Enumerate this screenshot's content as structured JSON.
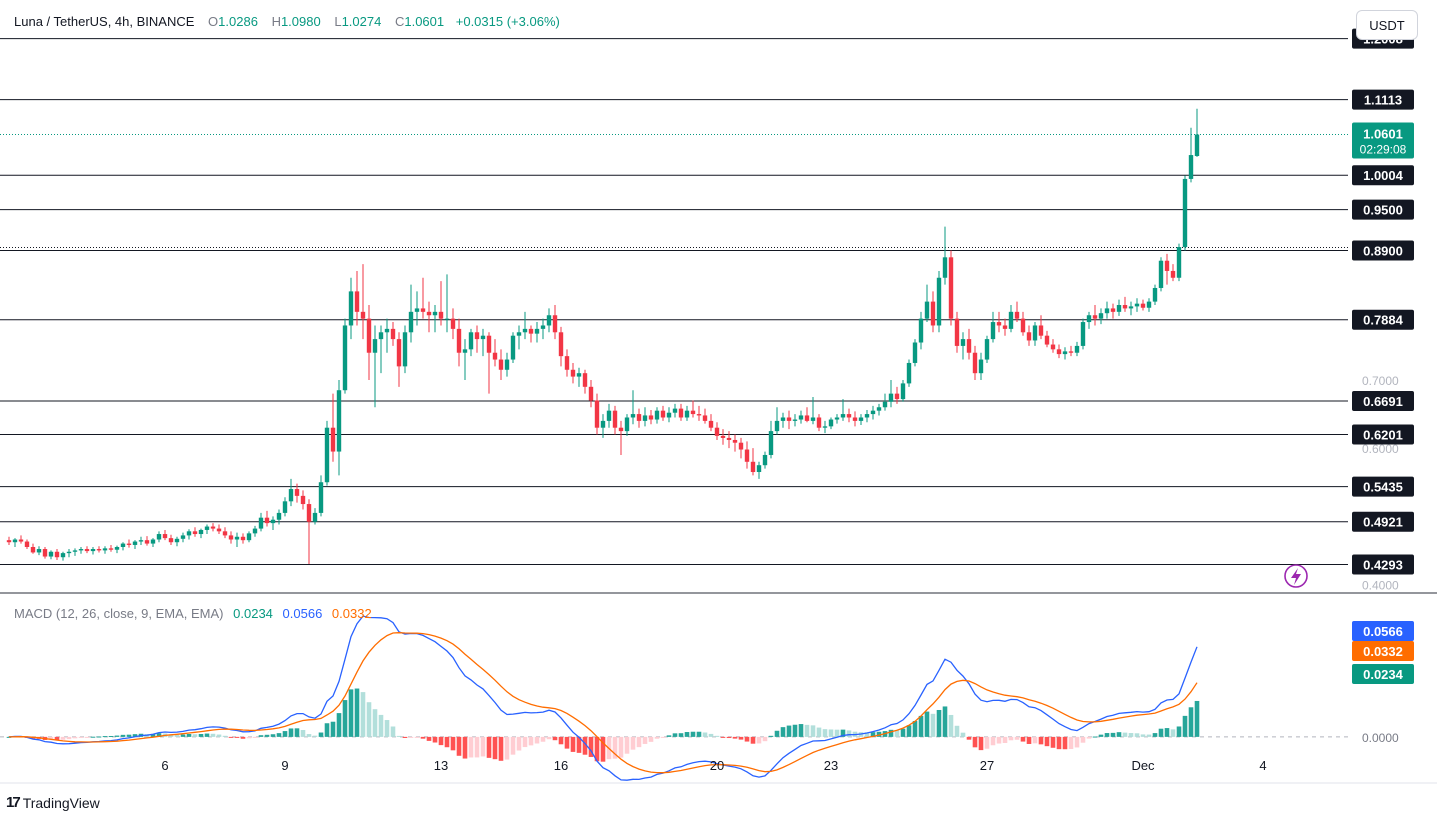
{
  "header": {
    "symbol": "Luna / TetherUS, 4h, BINANCE",
    "open_label": "O",
    "open": "1.0286",
    "high_label": "H",
    "high": "1.0980",
    "low_label": "L",
    "low": "1.0274",
    "close_label": "C",
    "close": "1.0601",
    "change": "+0.0315 (+3.06%)"
  },
  "currency_button": "USDT",
  "macd_header": {
    "label": "MACD (12, 26, close, 9, EMA, EMA)",
    "histogram": "0.0234",
    "macd": "0.0566",
    "signal": "0.0332"
  },
  "brand": "TradingView",
  "colors": {
    "up": "#089981",
    "down": "#f23645",
    "macd": "#2962ff",
    "signal": "#ff6d00",
    "hist_up": "#26a69a",
    "hist_up_light": "#b2dfdb",
    "hist_down": "#ff5252",
    "hist_down_light": "#ffcdd2"
  },
  "chart_data": {
    "type": "candlestick",
    "price_axis": {
      "range": [
        0.3875,
        1.2575
      ],
      "ticks": [
        "0.7000",
        "0.6000",
        "0.4000"
      ]
    },
    "levels": [
      "1.2008",
      "1.1113",
      "1.0004",
      "0.9500",
      "0.8900",
      "0.7884",
      "0.6691",
      "0.6201",
      "0.5435",
      "0.4921",
      "0.4293"
    ],
    "current_price": "1.0601",
    "countdown": "02:29:08",
    "x_axis_labels": [
      {
        "label": "6",
        "bar": 26
      },
      {
        "label": "9",
        "bar": 46
      },
      {
        "label": "13",
        "bar": 72
      },
      {
        "label": "16",
        "bar": 92
      },
      {
        "label": "20",
        "bar": 118
      },
      {
        "label": "23",
        "bar": 137
      },
      {
        "label": "27",
        "bar": 163
      },
      {
        "label": "Dec",
        "bar": 189
      },
      {
        "label": "4",
        "bar": 209
      }
    ],
    "candles": [
      [
        0.465,
        0.47,
        0.458,
        0.462
      ],
      [
        0.462,
        0.468,
        0.455,
        0.466
      ],
      [
        0.466,
        0.472,
        0.46,
        0.463
      ],
      [
        0.463,
        0.466,
        0.452,
        0.455
      ],
      [
        0.455,
        0.46,
        0.445,
        0.447
      ],
      [
        0.447,
        0.456,
        0.443,
        0.452
      ],
      [
        0.452,
        0.455,
        0.438,
        0.441
      ],
      [
        0.441,
        0.45,
        0.437,
        0.448
      ],
      [
        0.448,
        0.452,
        0.436,
        0.44
      ],
      [
        0.44,
        0.448,
        0.435,
        0.446
      ],
      [
        0.446,
        0.452,
        0.44,
        0.448
      ],
      [
        0.448,
        0.453,
        0.442,
        0.45
      ],
      [
        0.45,
        0.455,
        0.445,
        0.452
      ],
      [
        0.452,
        0.456,
        0.446,
        0.449
      ],
      [
        0.449,
        0.455,
        0.444,
        0.452
      ],
      [
        0.452,
        0.456,
        0.447,
        0.45
      ],
      [
        0.45,
        0.456,
        0.445,
        0.453
      ],
      [
        0.453,
        0.458,
        0.448,
        0.451
      ],
      [
        0.451,
        0.457,
        0.446,
        0.455
      ],
      [
        0.455,
        0.462,
        0.45,
        0.46
      ],
      [
        0.46,
        0.466,
        0.454,
        0.458
      ],
      [
        0.458,
        0.465,
        0.452,
        0.463
      ],
      [
        0.463,
        0.47,
        0.458,
        0.465
      ],
      [
        0.465,
        0.471,
        0.457,
        0.46
      ],
      [
        0.46,
        0.468,
        0.455,
        0.466
      ],
      [
        0.466,
        0.478,
        0.462,
        0.474
      ],
      [
        0.474,
        0.48,
        0.465,
        0.468
      ],
      [
        0.468,
        0.473,
        0.458,
        0.462
      ],
      [
        0.462,
        0.47,
        0.456,
        0.467
      ],
      [
        0.467,
        0.476,
        0.462,
        0.472
      ],
      [
        0.472,
        0.481,
        0.466,
        0.478
      ],
      [
        0.478,
        0.484,
        0.47,
        0.474
      ],
      [
        0.474,
        0.482,
        0.468,
        0.48
      ],
      [
        0.48,
        0.488,
        0.474,
        0.485
      ],
      [
        0.485,
        0.49,
        0.478,
        0.482
      ],
      [
        0.482,
        0.488,
        0.474,
        0.478
      ],
      [
        0.478,
        0.484,
        0.468,
        0.472
      ],
      [
        0.472,
        0.478,
        0.46,
        0.466
      ],
      [
        0.466,
        0.476,
        0.455,
        0.47
      ],
      [
        0.47,
        0.475,
        0.46,
        0.465
      ],
      [
        0.465,
        0.478,
        0.462,
        0.475
      ],
      [
        0.475,
        0.486,
        0.47,
        0.482
      ],
      [
        0.482,
        0.505,
        0.478,
        0.498
      ],
      [
        0.498,
        0.508,
        0.485,
        0.49
      ],
      [
        0.49,
        0.5,
        0.48,
        0.495
      ],
      [
        0.495,
        0.51,
        0.488,
        0.505
      ],
      [
        0.505,
        0.528,
        0.5,
        0.522
      ],
      [
        0.522,
        0.555,
        0.515,
        0.54
      ],
      [
        0.54,
        0.548,
        0.52,
        0.53
      ],
      [
        0.53,
        0.538,
        0.51,
        0.518
      ],
      [
        0.518,
        0.525,
        0.43,
        0.492
      ],
      [
        0.492,
        0.512,
        0.488,
        0.505
      ],
      [
        0.505,
        0.56,
        0.5,
        0.55
      ],
      [
        0.55,
        0.64,
        0.545,
        0.63
      ],
      [
        0.63,
        0.68,
        0.58,
        0.595
      ],
      [
        0.595,
        0.7,
        0.56,
        0.685
      ],
      [
        0.685,
        0.79,
        0.68,
        0.78
      ],
      [
        0.78,
        0.85,
        0.76,
        0.83
      ],
      [
        0.83,
        0.86,
        0.78,
        0.8
      ],
      [
        0.8,
        0.87,
        0.76,
        0.79
      ],
      [
        0.79,
        0.81,
        0.7,
        0.74
      ],
      [
        0.74,
        0.78,
        0.66,
        0.76
      ],
      [
        0.76,
        0.78,
        0.71,
        0.77
      ],
      [
        0.77,
        0.79,
        0.74,
        0.775
      ],
      [
        0.775,
        0.785,
        0.75,
        0.76
      ],
      [
        0.76,
        0.77,
        0.69,
        0.72
      ],
      [
        0.72,
        0.78,
        0.71,
        0.77
      ],
      [
        0.77,
        0.84,
        0.755,
        0.8
      ],
      [
        0.8,
        0.83,
        0.78,
        0.805
      ],
      [
        0.805,
        0.85,
        0.79,
        0.8
      ],
      [
        0.8,
        0.815,
        0.77,
        0.795
      ],
      [
        0.795,
        0.81,
        0.77,
        0.8
      ],
      [
        0.8,
        0.845,
        0.78,
        0.79
      ],
      [
        0.79,
        0.855,
        0.77,
        0.79
      ],
      [
        0.79,
        0.805,
        0.76,
        0.775
      ],
      [
        0.775,
        0.79,
        0.72,
        0.74
      ],
      [
        0.74,
        0.76,
        0.7,
        0.745
      ],
      [
        0.745,
        0.775,
        0.735,
        0.77
      ],
      [
        0.77,
        0.78,
        0.74,
        0.76
      ],
      [
        0.76,
        0.775,
        0.735,
        0.765
      ],
      [
        0.765,
        0.77,
        0.68,
        0.74
      ],
      [
        0.74,
        0.76,
        0.72,
        0.73
      ],
      [
        0.73,
        0.745,
        0.7,
        0.715
      ],
      [
        0.715,
        0.74,
        0.705,
        0.73
      ],
      [
        0.73,
        0.77,
        0.725,
        0.765
      ],
      [
        0.765,
        0.78,
        0.745,
        0.77
      ],
      [
        0.77,
        0.8,
        0.76,
        0.775
      ],
      [
        0.775,
        0.78,
        0.755,
        0.768
      ],
      [
        0.768,
        0.785,
        0.755,
        0.775
      ],
      [
        0.775,
        0.79,
        0.76,
        0.78
      ],
      [
        0.78,
        0.805,
        0.77,
        0.795
      ],
      [
        0.795,
        0.81,
        0.76,
        0.77
      ],
      [
        0.77,
        0.778,
        0.72,
        0.735
      ],
      [
        0.735,
        0.745,
        0.705,
        0.715
      ],
      [
        0.715,
        0.725,
        0.695,
        0.705
      ],
      [
        0.705,
        0.718,
        0.69,
        0.71
      ],
      [
        0.71,
        0.715,
        0.68,
        0.69
      ],
      [
        0.69,
        0.7,
        0.66,
        0.67
      ],
      [
        0.67,
        0.68,
        0.62,
        0.63
      ],
      [
        0.63,
        0.65,
        0.615,
        0.64
      ],
      [
        0.64,
        0.665,
        0.63,
        0.655
      ],
      [
        0.655,
        0.662,
        0.62,
        0.63
      ],
      [
        0.63,
        0.64,
        0.59,
        0.625
      ],
      [
        0.625,
        0.65,
        0.618,
        0.645
      ],
      [
        0.645,
        0.685,
        0.635,
        0.65
      ],
      [
        0.65,
        0.658,
        0.63,
        0.64
      ],
      [
        0.64,
        0.66,
        0.632,
        0.648
      ],
      [
        0.648,
        0.656,
        0.635,
        0.642
      ],
      [
        0.642,
        0.66,
        0.636,
        0.655
      ],
      [
        0.655,
        0.662,
        0.64,
        0.645
      ],
      [
        0.645,
        0.66,
        0.638,
        0.652
      ],
      [
        0.652,
        0.665,
        0.645,
        0.658
      ],
      [
        0.658,
        0.665,
        0.64,
        0.645
      ],
      [
        0.645,
        0.662,
        0.64,
        0.655
      ],
      [
        0.655,
        0.67,
        0.645,
        0.65
      ],
      [
        0.65,
        0.662,
        0.64,
        0.648
      ],
      [
        0.648,
        0.658,
        0.636,
        0.64
      ],
      [
        0.64,
        0.65,
        0.625,
        0.63
      ],
      [
        0.63,
        0.638,
        0.612,
        0.618
      ],
      [
        0.618,
        0.628,
        0.605,
        0.615
      ],
      [
        0.615,
        0.625,
        0.6,
        0.612
      ],
      [
        0.612,
        0.62,
        0.595,
        0.608
      ],
      [
        0.608,
        0.615,
        0.585,
        0.598
      ],
      [
        0.598,
        0.61,
        0.57,
        0.58
      ],
      [
        0.58,
        0.6,
        0.56,
        0.565
      ],
      [
        0.565,
        0.58,
        0.555,
        0.575
      ],
      [
        0.575,
        0.595,
        0.57,
        0.59
      ],
      [
        0.59,
        0.64,
        0.585,
        0.625
      ],
      [
        0.625,
        0.66,
        0.62,
        0.64
      ],
      [
        0.64,
        0.652,
        0.63,
        0.645
      ],
      [
        0.645,
        0.655,
        0.628,
        0.64
      ],
      [
        0.64,
        0.65,
        0.632,
        0.642
      ],
      [
        0.642,
        0.655,
        0.636,
        0.648
      ],
      [
        0.648,
        0.66,
        0.638,
        0.64
      ],
      [
        0.64,
        0.675,
        0.635,
        0.645
      ],
      [
        0.645,
        0.65,
        0.625,
        0.63
      ],
      [
        0.63,
        0.64,
        0.622,
        0.632
      ],
      [
        0.632,
        0.645,
        0.628,
        0.642
      ],
      [
        0.642,
        0.65,
        0.636,
        0.645
      ],
      [
        0.645,
        0.672,
        0.64,
        0.65
      ],
      [
        0.65,
        0.658,
        0.638,
        0.645
      ],
      [
        0.645,
        0.654,
        0.632,
        0.64
      ],
      [
        0.64,
        0.65,
        0.634,
        0.645
      ],
      [
        0.645,
        0.656,
        0.638,
        0.65
      ],
      [
        0.65,
        0.662,
        0.642,
        0.655
      ],
      [
        0.655,
        0.665,
        0.648,
        0.66
      ],
      [
        0.66,
        0.68,
        0.655,
        0.668
      ],
      [
        0.668,
        0.7,
        0.66,
        0.68
      ],
      [
        0.68,
        0.69,
        0.665,
        0.672
      ],
      [
        0.672,
        0.7,
        0.668,
        0.695
      ],
      [
        0.695,
        0.73,
        0.69,
        0.725
      ],
      [
        0.725,
        0.76,
        0.72,
        0.755
      ],
      [
        0.755,
        0.8,
        0.745,
        0.79
      ],
      [
        0.79,
        0.84,
        0.785,
        0.815
      ],
      [
        0.815,
        0.83,
        0.77,
        0.78
      ],
      [
        0.78,
        0.86,
        0.77,
        0.85
      ],
      [
        0.85,
        0.925,
        0.84,
        0.88
      ],
      [
        0.88,
        0.89,
        0.78,
        0.79
      ],
      [
        0.79,
        0.8,
        0.74,
        0.75
      ],
      [
        0.75,
        0.77,
        0.73,
        0.76
      ],
      [
        0.76,
        0.775,
        0.73,
        0.74
      ],
      [
        0.74,
        0.75,
        0.7,
        0.71
      ],
      [
        0.71,
        0.74,
        0.7,
        0.73
      ],
      [
        0.73,
        0.765,
        0.725,
        0.76
      ],
      [
        0.76,
        0.8,
        0.755,
        0.785
      ],
      [
        0.785,
        0.8,
        0.77,
        0.78
      ],
      [
        0.78,
        0.79,
        0.765,
        0.775
      ],
      [
        0.775,
        0.81,
        0.77,
        0.8
      ],
      [
        0.8,
        0.815,
        0.785,
        0.79
      ],
      [
        0.79,
        0.8,
        0.765,
        0.77
      ],
      [
        0.77,
        0.78,
        0.75,
        0.758
      ],
      [
        0.758,
        0.785,
        0.75,
        0.78
      ],
      [
        0.78,
        0.795,
        0.76,
        0.765
      ],
      [
        0.765,
        0.772,
        0.748,
        0.752
      ],
      [
        0.752,
        0.76,
        0.74,
        0.745
      ],
      [
        0.745,
        0.752,
        0.732,
        0.738
      ],
      [
        0.738,
        0.748,
        0.73,
        0.742
      ],
      [
        0.742,
        0.75,
        0.735,
        0.74
      ],
      [
        0.74,
        0.756,
        0.735,
        0.75
      ],
      [
        0.75,
        0.79,
        0.745,
        0.785
      ],
      [
        0.785,
        0.8,
        0.775,
        0.795
      ],
      [
        0.795,
        0.81,
        0.78,
        0.79
      ],
      [
        0.79,
        0.805,
        0.782,
        0.798
      ],
      [
        0.798,
        0.815,
        0.79,
        0.805
      ],
      [
        0.805,
        0.812,
        0.79,
        0.8
      ],
      [
        0.8,
        0.818,
        0.794,
        0.81
      ],
      [
        0.81,
        0.822,
        0.8,
        0.805
      ],
      [
        0.805,
        0.815,
        0.795,
        0.808
      ],
      [
        0.808,
        0.82,
        0.8,
        0.812
      ],
      [
        0.812,
        0.818,
        0.802,
        0.806
      ],
      [
        0.806,
        0.82,
        0.8,
        0.815
      ],
      [
        0.815,
        0.84,
        0.81,
        0.835
      ],
      [
        0.835,
        0.88,
        0.83,
        0.875
      ],
      [
        0.875,
        0.885,
        0.84,
        0.86
      ],
      [
        0.86,
        0.87,
        0.845,
        0.85
      ],
      [
        0.85,
        0.9,
        0.845,
        0.895
      ],
      [
        0.895,
        1.0,
        0.89,
        0.995
      ],
      [
        0.995,
        1.07,
        0.99,
        1.03
      ],
      [
        1.0286,
        1.098,
        1.0274,
        1.0601
      ]
    ],
    "macd": {
      "axis_range": [
        -0.0285,
        0.0918
      ],
      "ticks": [
        "0.0000"
      ],
      "labels": {
        "macd": "0.0566",
        "signal": "0.0332",
        "histogram": "0.0234"
      }
    }
  }
}
